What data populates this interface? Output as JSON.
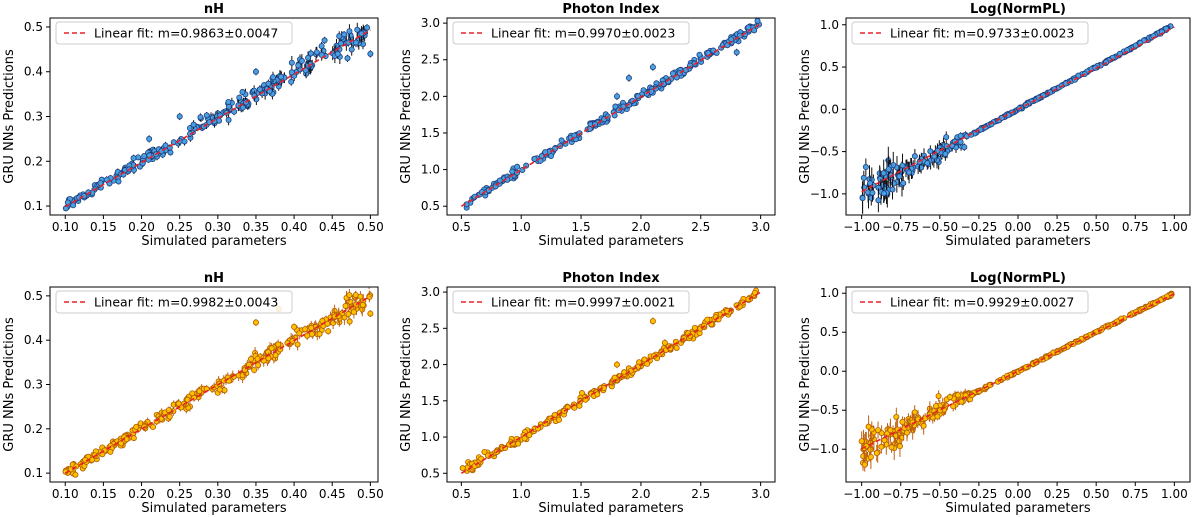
{
  "figure": {
    "xlabel": "Simulated parameters",
    "ylabel": "GRU NNs Predictions"
  },
  "chart_data": [
    {
      "type": "scatter",
      "row": 0,
      "col": 0,
      "style": "blue",
      "title": "nH",
      "xlabel": "Simulated parameters",
      "ylabel": "GRU NNs Predictions",
      "xlim": [
        0.08,
        0.51
      ],
      "ylim": [
        0.08,
        0.52
      ],
      "xticks": [
        0.1,
        0.15,
        0.2,
        0.25,
        0.3,
        0.35,
        0.4,
        0.45,
        0.5
      ],
      "xtick_labels": [
        "0.10",
        "0.15",
        "0.20",
        "0.25",
        "0.30",
        "0.35",
        "0.40",
        "0.45",
        "0.50"
      ],
      "yticks": [
        0.1,
        0.2,
        0.3,
        0.4,
        0.5
      ],
      "ytick_labels": [
        "0.1",
        "0.2",
        "0.3",
        "0.4",
        "0.5"
      ],
      "fit": {
        "label": "Linear fit: m=0.9863±0.0047",
        "slope": 0.9863,
        "intercept": 0.0
      },
      "points_sample": [
        [
          0.1,
          0.1
        ],
        [
          0.15,
          0.16
        ],
        [
          0.2,
          0.2
        ],
        [
          0.25,
          0.26
        ],
        [
          0.3,
          0.3
        ],
        [
          0.35,
          0.34
        ],
        [
          0.4,
          0.4
        ],
        [
          0.45,
          0.44
        ],
        [
          0.5,
          0.49
        ]
      ],
      "outliers": [
        [
          0.21,
          0.25
        ],
        [
          0.25,
          0.3
        ],
        [
          0.35,
          0.4
        ],
        [
          0.44,
          0.47
        ],
        [
          0.47,
          0.43
        ],
        [
          0.5,
          0.44
        ]
      ]
    },
    {
      "type": "scatter",
      "row": 0,
      "col": 1,
      "style": "blue",
      "title": "Photon Index",
      "xlabel": "Simulated parameters",
      "ylabel": "GRU NNs Predictions",
      "xlim": [
        0.38,
        3.12
      ],
      "ylim": [
        0.38,
        3.07
      ],
      "xticks": [
        0.5,
        1.0,
        1.5,
        2.0,
        2.5,
        3.0
      ],
      "xtick_labels": [
        "0.5",
        "1.0",
        "1.5",
        "2.0",
        "2.5",
        "3.0"
      ],
      "yticks": [
        0.5,
        1.0,
        1.5,
        2.0,
        2.5,
        3.0
      ],
      "ytick_labels": [
        "0.5",
        "1.0",
        "1.5",
        "2.0",
        "2.5",
        "3.0"
      ],
      "fit": {
        "label": "Linear fit: m=0.9970±0.0023",
        "slope": 0.997,
        "intercept": 0.0
      },
      "points_sample": [
        [
          0.5,
          0.5
        ],
        [
          1.0,
          1.0
        ],
        [
          1.5,
          1.5
        ],
        [
          2.0,
          2.0
        ],
        [
          2.5,
          2.5
        ],
        [
          3.0,
          2.95
        ]
      ],
      "outliers": [
        [
          1.8,
          2.0
        ],
        [
          1.9,
          2.25
        ],
        [
          2.1,
          2.4
        ],
        [
          2.8,
          2.6
        ]
      ]
    },
    {
      "type": "scatter",
      "row": 0,
      "col": 2,
      "style": "blue",
      "title": "Log(NormPL)",
      "xlabel": "Simulated parameters",
      "ylabel": "GRU NNs Predictions",
      "xlim": [
        -1.1,
        1.1
      ],
      "ylim": [
        -1.25,
        1.08
      ],
      "xticks": [
        -1.0,
        -0.75,
        -0.5,
        -0.25,
        0.0,
        0.25,
        0.5,
        0.75,
        1.0
      ],
      "xtick_labels": [
        "−1.00",
        "−0.75",
        "−0.50",
        "−0.25",
        "0.00",
        "0.25",
        "0.50",
        "0.75",
        "1.00"
      ],
      "yticks": [
        -1.0,
        -0.5,
        0.0,
        0.5,
        1.0
      ],
      "ytick_labels": [
        "−1.0",
        "−0.5",
        "0.0",
        "0.5",
        "1.0"
      ],
      "fit": {
        "label": "Linear fit: m=0.9733±0.0023",
        "slope": 0.9733,
        "intercept": 0.0
      },
      "points_sample": [
        [
          -1.0,
          -0.95
        ],
        [
          -0.75,
          -0.8
        ],
        [
          -0.5,
          -0.5
        ],
        [
          0.0,
          0.0
        ],
        [
          0.5,
          0.5
        ],
        [
          1.0,
          1.0
        ]
      ],
      "outliers": []
    },
    {
      "type": "scatter",
      "row": 1,
      "col": 0,
      "style": "orange",
      "title": "nH",
      "xlabel": "Simulated parameters",
      "ylabel": "GRU NNs Predictions",
      "xlim": [
        0.08,
        0.51
      ],
      "ylim": [
        0.08,
        0.52
      ],
      "xticks": [
        0.1,
        0.15,
        0.2,
        0.25,
        0.3,
        0.35,
        0.4,
        0.45,
        0.5
      ],
      "xtick_labels": [
        "0.10",
        "0.15",
        "0.20",
        "0.25",
        "0.30",
        "0.35",
        "0.40",
        "0.45",
        "0.50"
      ],
      "yticks": [
        0.1,
        0.2,
        0.3,
        0.4,
        0.5
      ],
      "ytick_labels": [
        "0.1",
        "0.2",
        "0.3",
        "0.4",
        "0.5"
      ],
      "fit": {
        "label": "Linear fit: m=0.9982±0.0043",
        "slope": 0.9982,
        "intercept": 0.0
      },
      "points_sample": [
        [
          0.1,
          0.1
        ],
        [
          0.2,
          0.2
        ],
        [
          0.3,
          0.3
        ],
        [
          0.4,
          0.4
        ],
        [
          0.5,
          0.5
        ]
      ],
      "outliers": [
        [
          0.35,
          0.44
        ],
        [
          0.38,
          0.47
        ],
        [
          0.4,
          0.43
        ],
        [
          0.5,
          0.46
        ]
      ]
    },
    {
      "type": "scatter",
      "row": 1,
      "col": 1,
      "style": "orange",
      "title": "Photon Index",
      "xlabel": "Simulated parameters",
      "ylabel": "GRU NNs Predictions",
      "xlim": [
        0.38,
        3.12
      ],
      "ylim": [
        0.38,
        3.07
      ],
      "xticks": [
        0.5,
        1.0,
        1.5,
        2.0,
        2.5,
        3.0
      ],
      "xtick_labels": [
        "0.5",
        "1.0",
        "1.5",
        "2.0",
        "2.5",
        "3.0"
      ],
      "yticks": [
        0.5,
        1.0,
        1.5,
        2.0,
        2.5,
        3.0
      ],
      "ytick_labels": [
        "0.5",
        "1.0",
        "1.5",
        "2.0",
        "2.5",
        "3.0"
      ],
      "fit": {
        "label": "Linear fit: m=0.9997±0.0021",
        "slope": 0.9997,
        "intercept": 0.0
      },
      "points_sample": [
        [
          0.5,
          0.5
        ],
        [
          1.0,
          1.0
        ],
        [
          1.5,
          1.5
        ],
        [
          2.0,
          2.0
        ],
        [
          2.5,
          2.5
        ],
        [
          3.0,
          2.98
        ]
      ],
      "outliers": [
        [
          1.8,
          2.0
        ],
        [
          2.1,
          2.6
        ],
        [
          2.2,
          2.3
        ]
      ]
    },
    {
      "type": "scatter",
      "row": 1,
      "col": 2,
      "style": "orange",
      "title": "Log(NormPL)",
      "xlabel": "Simulated parameters",
      "ylabel": "GRU NNs Predictions",
      "xlim": [
        -1.1,
        1.1
      ],
      "ylim": [
        -1.42,
        1.08
      ],
      "xticks": [
        -1.0,
        -0.75,
        -0.5,
        -0.25,
        0.0,
        0.25,
        0.5,
        0.75,
        1.0
      ],
      "xtick_labels": [
        "−1.00",
        "−0.75",
        "−0.50",
        "−0.25",
        "0.00",
        "0.25",
        "0.50",
        "0.75",
        "1.00"
      ],
      "yticks": [
        -1.0,
        -0.5,
        0.0,
        0.5,
        1.0
      ],
      "ytick_labels": [
        "−1.0",
        "−0.5",
        "0.0",
        "0.5",
        "1.0"
      ],
      "fit": {
        "label": "Linear fit: m=0.9929±0.0027",
        "slope": 0.9929,
        "intercept": 0.0
      },
      "points_sample": [
        [
          -1.0,
          -0.9
        ],
        [
          -0.5,
          -0.5
        ],
        [
          0.0,
          0.0
        ],
        [
          0.5,
          0.5
        ],
        [
          1.0,
          1.0
        ]
      ],
      "outliers": []
    }
  ],
  "colors": {
    "blue_face": "#4a9fe0",
    "blue_edge": "#1f3f80",
    "blue_err": "#111111",
    "orange_face": "#ffc000",
    "orange_edge": "#b05a00",
    "orange_err": "#c06010",
    "fit_line": "#e8202a",
    "axis": "#000000"
  }
}
